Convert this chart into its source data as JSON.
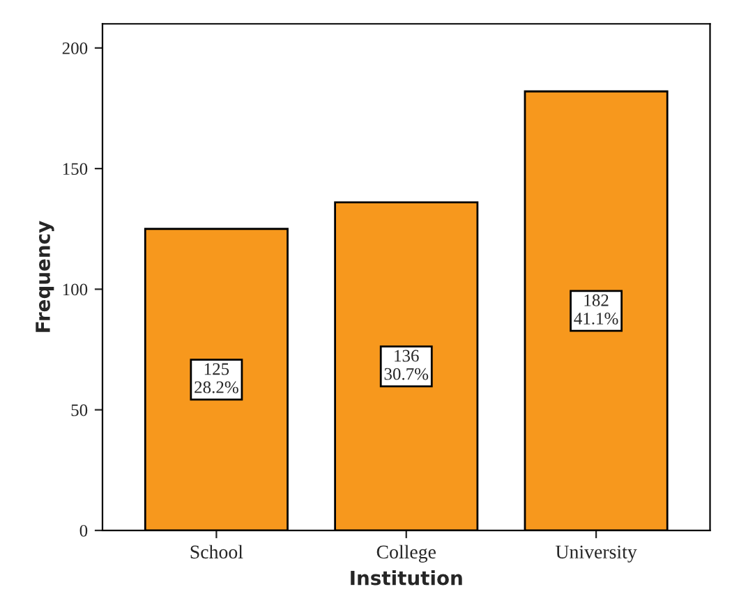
{
  "chart_data": {
    "type": "bar",
    "xlabel": "Institution",
    "ylabel": "Frequency",
    "categories": [
      "School",
      "College",
      "University"
    ],
    "values": [
      125,
      136,
      182
    ],
    "value_labels": [
      "125\n28.2%",
      "136\n30.7%",
      "182\n41.1%"
    ],
    "color": "#f7981d",
    "ylim": [
      0,
      210
    ],
    "yticks": [
      0,
      50,
      100,
      150,
      200
    ],
    "grid": false,
    "legend": false
  }
}
